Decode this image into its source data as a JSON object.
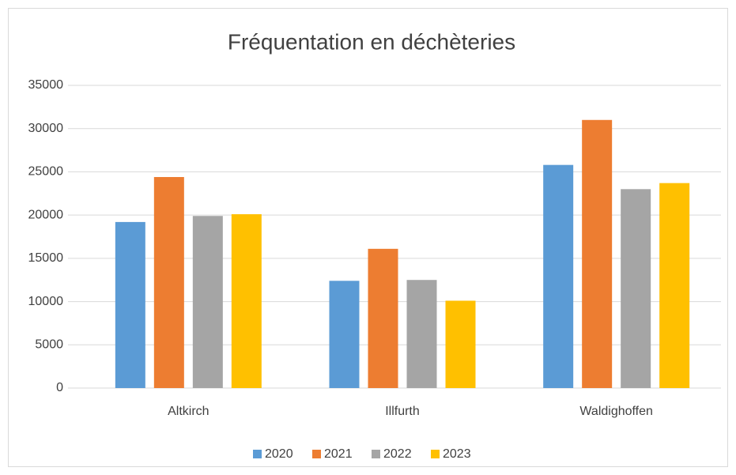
{
  "chart_data": {
    "type": "bar",
    "title": "Fréquentation en déchèteries",
    "categories": [
      "Altkirch",
      "Illfurth",
      "Waldighoffen"
    ],
    "series": [
      {
        "name": "2020",
        "color": "#5b9bd5",
        "values": [
          19200,
          12400,
          25800
        ]
      },
      {
        "name": "2021",
        "color": "#ed7d31",
        "values": [
          24400,
          16100,
          31000
        ]
      },
      {
        "name": "2022",
        "color": "#a5a5a5",
        "values": [
          19900,
          12500,
          23000
        ]
      },
      {
        "name": "2023",
        "color": "#ffc000",
        "values": [
          20100,
          10100,
          23700
        ]
      }
    ],
    "ylim": [
      0,
      35000
    ],
    "yticks": [
      0,
      5000,
      10000,
      15000,
      20000,
      25000,
      30000,
      35000
    ],
    "grid": true,
    "legend": "bottom"
  }
}
